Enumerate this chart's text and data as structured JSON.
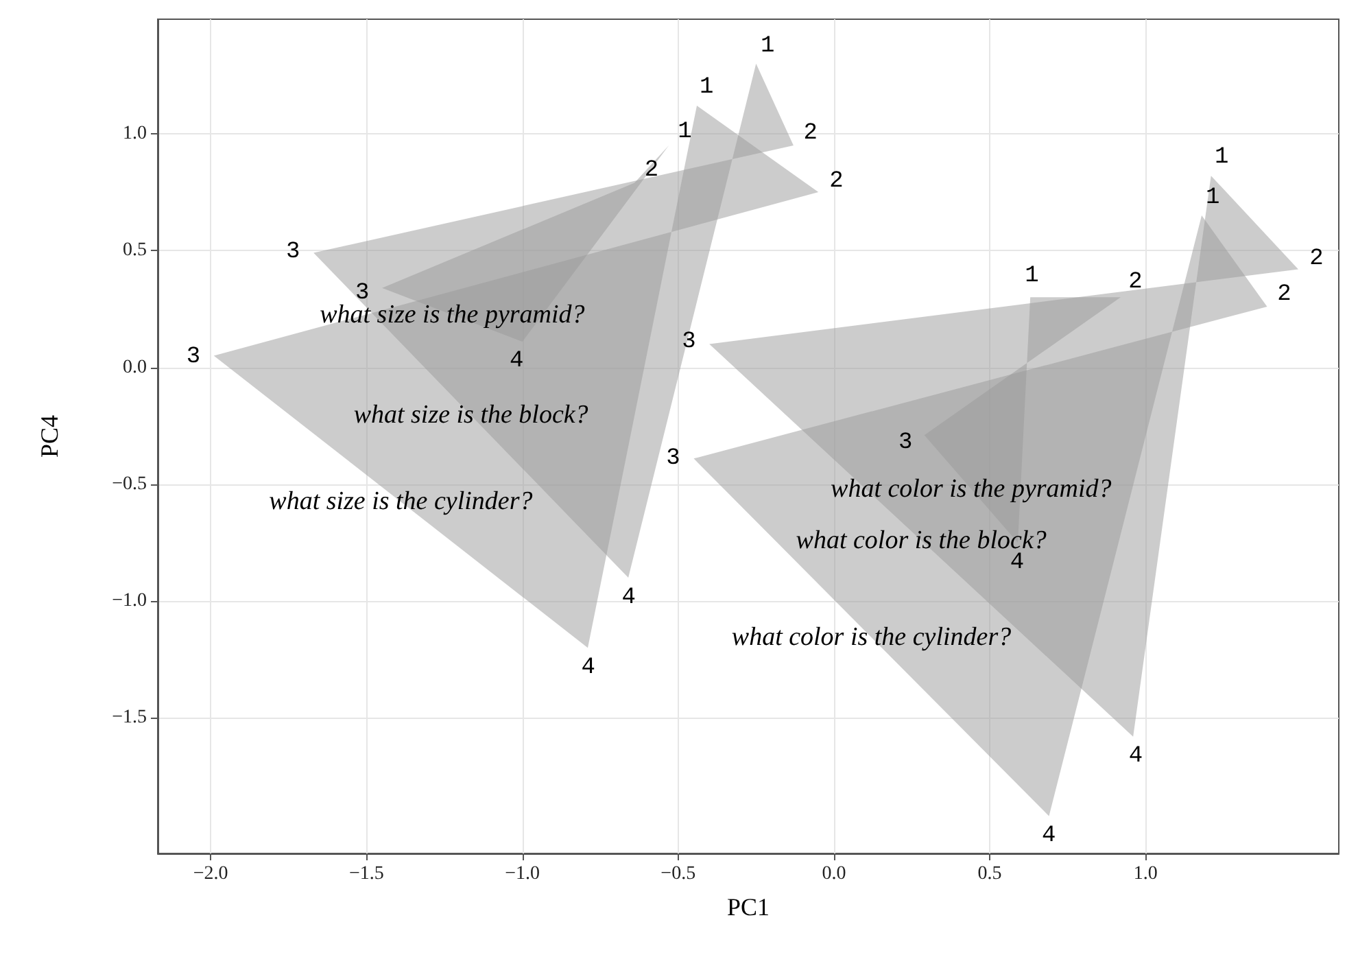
{
  "chart_data": {
    "type": "area",
    "xlabel": "PC1",
    "ylabel": "PC4",
    "xlim": [
      -2.17,
      1.62
    ],
    "ylim": [
      -2.08,
      1.49
    ],
    "xticks": [
      {
        "value": -2,
        "label": "−2.0"
      },
      {
        "value": -1.5,
        "label": "−1.5"
      },
      {
        "value": -1,
        "label": "−1.0"
      },
      {
        "value": -0.5,
        "label": "−0.5"
      },
      {
        "value": 0,
        "label": "0.0"
      },
      {
        "value": 0.5,
        "label": "0.5"
      },
      {
        "value": 1,
        "label": "1.0"
      }
    ],
    "yticks": [
      {
        "value": -1.5,
        "label": "−1.5"
      },
      {
        "value": -1,
        "label": "−1.0"
      },
      {
        "value": -0.5,
        "label": "−0.5"
      },
      {
        "value": 0,
        "label": "0.0"
      },
      {
        "value": 0.5,
        "label": "0.5"
      },
      {
        "value": 1,
        "label": "1.0"
      }
    ],
    "grid": true,
    "marker": "none",
    "series": [
      {
        "name": "what size is the pyramid?",
        "color": "#999999",
        "x": [
          -0.53,
          -0.64,
          -1.45,
          -1.0
        ],
        "values": [
          0.95,
          0.79,
          0.34,
          0.11
        ]
      },
      {
        "name": "what size is the block?",
        "color": "#999999",
        "x": [
          -0.25,
          -0.13,
          -1.67,
          -0.66
        ],
        "values": [
          1.3,
          0.95,
          0.49,
          -0.9
        ]
      },
      {
        "name": "what size is the cylinder?",
        "color": "#999999",
        "x": [
          -0.44,
          -0.05,
          -1.99,
          -0.79
        ],
        "values": [
          1.12,
          0.75,
          0.05,
          -1.2
        ]
      },
      {
        "name": "what color is the pyramid?",
        "color": "#999999",
        "x": [
          0.63,
          0.92,
          0.29,
          0.59
        ],
        "values": [
          0.3,
          0.3,
          -0.29,
          -0.75
        ]
      },
      {
        "name": "what color is the block?",
        "color": "#999999",
        "x": [
          1.21,
          1.49,
          -0.4,
          0.96
        ],
        "values": [
          0.82,
          0.42,
          0.1,
          -1.58
        ]
      },
      {
        "name": "what color is the cylinder?",
        "color": "#999999",
        "x": [
          1.18,
          1.39,
          -0.45,
          0.69
        ],
        "values": [
          0.65,
          0.26,
          -0.39,
          -1.92
        ]
      }
    ],
    "annotations": [
      {
        "text": "1",
        "x": -0.53,
        "y": 0.95
      },
      {
        "text": "2",
        "x": -0.64,
        "y": 0.79
      },
      {
        "text": "3",
        "x": -1.45,
        "y": 0.34
      },
      {
        "text": "4",
        "x": -1.0,
        "y": 0.11
      },
      {
        "text": "1",
        "x": -0.25,
        "y": 1.3
      },
      {
        "text": "2",
        "x": -0.13,
        "y": 0.95
      },
      {
        "text": "3",
        "x": -1.67,
        "y": 0.49
      },
      {
        "text": "4",
        "x": -0.66,
        "y": -0.9
      },
      {
        "text": "1",
        "x": -0.44,
        "y": 1.12
      },
      {
        "text": "2",
        "x": -0.05,
        "y": 0.75
      },
      {
        "text": "3",
        "x": -1.99,
        "y": 0.05
      },
      {
        "text": "4",
        "x": -0.79,
        "y": -1.2
      },
      {
        "text": "1",
        "x": 0.63,
        "y": 0.3
      },
      {
        "text": "2",
        "x": 0.92,
        "y": 0.3
      },
      {
        "text": "3",
        "x": 0.29,
        "y": -0.29
      },
      {
        "text": "4",
        "x": 0.59,
        "y": -0.75
      },
      {
        "text": "1",
        "x": 1.21,
        "y": 0.82
      },
      {
        "text": "2",
        "x": 1.49,
        "y": 0.42
      },
      {
        "text": "3",
        "x": -0.4,
        "y": 0.1
      },
      {
        "text": "4",
        "x": 0.96,
        "y": -1.58
      },
      {
        "text": "1",
        "x": 1.18,
        "y": 0.65
      },
      {
        "text": "2",
        "x": 1.39,
        "y": 0.26
      },
      {
        "text": "3",
        "x": -0.45,
        "y": -0.39
      },
      {
        "text": "4",
        "x": 0.69,
        "y": -1.92
      }
    ]
  }
}
